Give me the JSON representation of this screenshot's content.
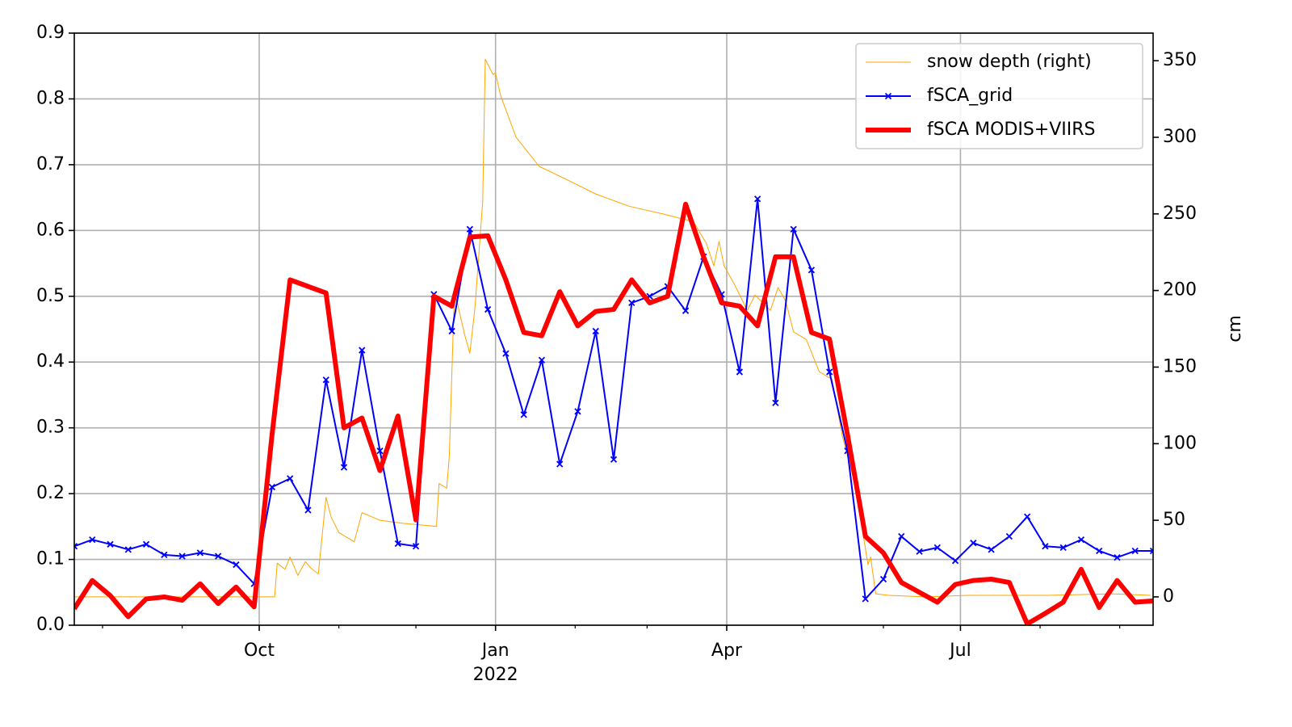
{
  "chart_data": {
    "type": "line",
    "xlim": [
      "2021-07-21",
      "2022-09-14"
    ],
    "xticks": [
      {
        "value": "2021-10-01",
        "label": "Oct"
      },
      {
        "value": "2022-01-01",
        "label": "Jan",
        "sublabel": "2022"
      },
      {
        "value": "2022-04-01",
        "label": "Apr"
      },
      {
        "value": "2022-07-01",
        "label": "Jul"
      }
    ],
    "xminorticks": [
      "2021-08-01",
      "2021-09-01",
      "2021-11-01",
      "2021-12-01",
      "2022-02-01",
      "2022-03-01",
      "2022-05-01",
      "2022-06-01",
      "2022-08-01",
      "2022-09-01"
    ],
    "ylim": [
      0,
      0.9
    ],
    "yticks": [
      {
        "value": 0,
        "label": "0.0"
      },
      0.1,
      0.2,
      0.3,
      0.4,
      0.5,
      0.6,
      0.7,
      0.8,
      0.9
    ],
    "y2lim": [
      -18.5,
      368
    ],
    "y2ticks": [
      0,
      50,
      100,
      150,
      200,
      250,
      300,
      350
    ],
    "y2label": "cm",
    "grid": true,
    "legend": "upper right",
    "series": [
      {
        "name": "snow depth (right)",
        "color": "#ffa500",
        "axis": "y2",
        "width": 1,
        "x": [
          "2021-07-21",
          "2021-08-24",
          "2021-09-29",
          "2021-10-07",
          "2021-10-08",
          "2021-10-11",
          "2021-10-13",
          "2021-10-16",
          "2021-10-19",
          "2021-10-21",
          "2021-10-24",
          "2021-10-27",
          "2021-10-29",
          "2021-11-01",
          "2021-11-07",
          "2021-11-10",
          "2021-11-17",
          "2021-11-26",
          "2021-12-09",
          "2021-12-10",
          "2021-12-13",
          "2021-12-14",
          "2021-12-16",
          "2021-12-20",
          "2021-12-22",
          "2021-12-24",
          "2021-12-27",
          "2021-12-28",
          "2021-12-31",
          "2022-01-01",
          "2022-01-03",
          "2022-01-09",
          "2022-01-18",
          "2022-01-28",
          "2022-02-09",
          "2022-02-22",
          "2022-03-07",
          "2022-03-19",
          "2022-03-24",
          "2022-03-27",
          "2022-03-29",
          "2022-03-31",
          "2022-04-04",
          "2022-04-09",
          "2022-04-12",
          "2022-04-15",
          "2022-04-18",
          "2022-04-21",
          "2022-04-24",
          "2022-04-27",
          "2022-05-02",
          "2022-05-07",
          "2022-05-12",
          "2022-05-16",
          "2022-05-21",
          "2022-05-26",
          "2022-05-27",
          "2022-05-29",
          "2022-06-03",
          "2022-06-18",
          "2022-07-04",
          "2022-08-04",
          "2022-08-29",
          "2022-09-13"
        ],
        "values": [
          0,
          0,
          0,
          0,
          22,
          18,
          26,
          14,
          23,
          19,
          15,
          65,
          52,
          42,
          36,
          55,
          50,
          48,
          46,
          74,
          71,
          92,
          200,
          171,
          159,
          189,
          258,
          351,
          341,
          342,
          327,
          300,
          281,
          273,
          263,
          255,
          250,
          245,
          231,
          216,
          232,
          216,
          204,
          187,
          197,
          192,
          187,
          202,
          193,
          173,
          168,
          147,
          142,
          105,
          73,
          21,
          26,
          2,
          1,
          0,
          1,
          1,
          2,
          1
        ]
      },
      {
        "name": "fSCA_grid",
        "color": "#0000ff",
        "width": 2,
        "marker": "x",
        "x": [
          "2021-07-21",
          "2021-07-28",
          "2021-08-04",
          "2021-08-11",
          "2021-08-18",
          "2021-08-25",
          "2021-09-01",
          "2021-09-08",
          "2021-09-15",
          "2021-09-22",
          "2021-09-29",
          "2021-10-06",
          "2021-10-13",
          "2021-10-20",
          "2021-10-27",
          "2021-11-03",
          "2021-11-10",
          "2021-11-17",
          "2021-11-24",
          "2021-12-01",
          "2021-12-08",
          "2021-12-15",
          "2021-12-22",
          "2021-12-29",
          "2022-01-05",
          "2022-01-12",
          "2022-01-19",
          "2022-01-26",
          "2022-02-02",
          "2022-02-09",
          "2022-02-16",
          "2022-02-23",
          "2022-03-02",
          "2022-03-09",
          "2022-03-16",
          "2022-03-23",
          "2022-03-30",
          "2022-04-06",
          "2022-04-13",
          "2022-04-20",
          "2022-04-27",
          "2022-05-04",
          "2022-05-11",
          "2022-05-18",
          "2022-05-25",
          "2022-06-01",
          "2022-06-08",
          "2022-06-15",
          "2022-06-22",
          "2022-06-29",
          "2022-07-06",
          "2022-07-13",
          "2022-07-20",
          "2022-07-27",
          "2022-08-03",
          "2022-08-10",
          "2022-08-17",
          "2022-08-24",
          "2022-08-31",
          "2022-09-07",
          "2022-09-14"
        ],
        "values": [
          0.12,
          0.13,
          0.123,
          0.115,
          0.123,
          0.107,
          0.105,
          0.11,
          0.105,
          0.092,
          0.063,
          0.21,
          0.223,
          0.175,
          0.373,
          0.24,
          0.418,
          0.265,
          0.124,
          0.12,
          0.503,
          0.447,
          0.602,
          0.48,
          0.413,
          0.32,
          0.403,
          0.245,
          0.325,
          0.447,
          0.252,
          0.49,
          0.5,
          0.515,
          0.478,
          0.56,
          0.503,
          0.385,
          0.648,
          0.338,
          0.602,
          0.54,
          0.385,
          0.265,
          0.04,
          0.07,
          0.135,
          0.112,
          0.118,
          0.098,
          0.125,
          0.115,
          0.135,
          0.165,
          0.12,
          0.118,
          0.13,
          0.113,
          0.103,
          0.113,
          0.113
        ]
      },
      {
        "name": "fSCA MODIS+VIIRS",
        "color": "#ff0000",
        "width": 6,
        "x": [
          "2021-07-21",
          "2021-07-28",
          "2021-08-04",
          "2021-08-11",
          "2021-08-18",
          "2021-08-25",
          "2021-09-01",
          "2021-09-08",
          "2021-09-15",
          "2021-09-22",
          "2021-09-29",
          "2021-10-06",
          "2021-10-13",
          "2021-10-20",
          "2021-10-27",
          "2021-11-03",
          "2021-11-10",
          "2021-11-17",
          "2021-11-24",
          "2021-12-01",
          "2021-12-08",
          "2021-12-15",
          "2021-12-22",
          "2021-12-29",
          "2022-01-05",
          "2022-01-12",
          "2022-01-19",
          "2022-01-26",
          "2022-02-02",
          "2022-02-09",
          "2022-02-16",
          "2022-02-23",
          "2022-03-02",
          "2022-03-09",
          "2022-03-16",
          "2022-03-23",
          "2022-03-30",
          "2022-04-06",
          "2022-04-13",
          "2022-04-20",
          "2022-04-27",
          "2022-05-04",
          "2022-05-11",
          "2022-05-18",
          "2022-05-25",
          "2022-06-01",
          "2022-06-08",
          "2022-06-15",
          "2022-06-22",
          "2022-06-29",
          "2022-07-06",
          "2022-07-13",
          "2022-07-20",
          "2022-07-27",
          "2022-08-03",
          "2022-08-10",
          "2022-08-17",
          "2022-08-24",
          "2022-08-31",
          "2022-09-07",
          "2022-09-14"
        ],
        "values": [
          0.025,
          0.068,
          0.045,
          0.013,
          0.04,
          0.043,
          0.038,
          0.063,
          0.033,
          0.058,
          0.028,
          0.29,
          0.525,
          0.515,
          0.505,
          0.3,
          0.315,
          0.235,
          0.318,
          0.16,
          0.5,
          0.485,
          0.59,
          0.592,
          0.525,
          0.445,
          0.44,
          0.507,
          0.455,
          0.477,
          0.48,
          0.525,
          0.49,
          0.5,
          0.64,
          0.56,
          0.49,
          0.485,
          0.455,
          0.56,
          0.56,
          0.445,
          0.435,
          0.29,
          0.135,
          0.11,
          0.065,
          0.05,
          0.035,
          0.062,
          0.068,
          0.07,
          0.065,
          0.002,
          0.018,
          0.035,
          0.085,
          0.027,
          0.068,
          0.035,
          0.037
        ]
      }
    ]
  }
}
